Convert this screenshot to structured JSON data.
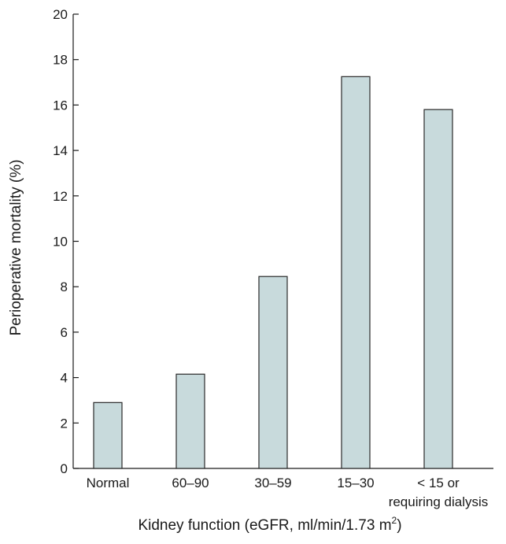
{
  "chart_data": {
    "type": "bar",
    "categories": [
      "Normal",
      "60–90",
      "30–59",
      "15–30",
      "< 15 or requiring dialysis"
    ],
    "category_lines": [
      [
        "Normal"
      ],
      [
        "60–90"
      ],
      [
        "30–59"
      ],
      [
        "15–30"
      ],
      [
        "< 15 or",
        "requiring dialysis"
      ]
    ],
    "values": [
      2.9,
      4.15,
      8.45,
      17.25,
      15.8
    ],
    "title": "",
    "xlabel": "Kidney function (eGFR, ml/min/1.73 m²)",
    "xlabel_parts": {
      "main": "Kidney function (eGFR, ml/min/1.73 m",
      "superscript": "2",
      "suffix": ")"
    },
    "ylabel": "Perioperative mortality (%)",
    "ylim": [
      0,
      20
    ],
    "yticks": [
      0,
      2,
      4,
      6,
      8,
      10,
      12,
      14,
      16,
      18,
      20
    ],
    "grid": false,
    "colors": {
      "bar_fill": "#c8dadc",
      "bar_stroke": "#2a2a2a",
      "axis": "#1a1a1a"
    }
  }
}
